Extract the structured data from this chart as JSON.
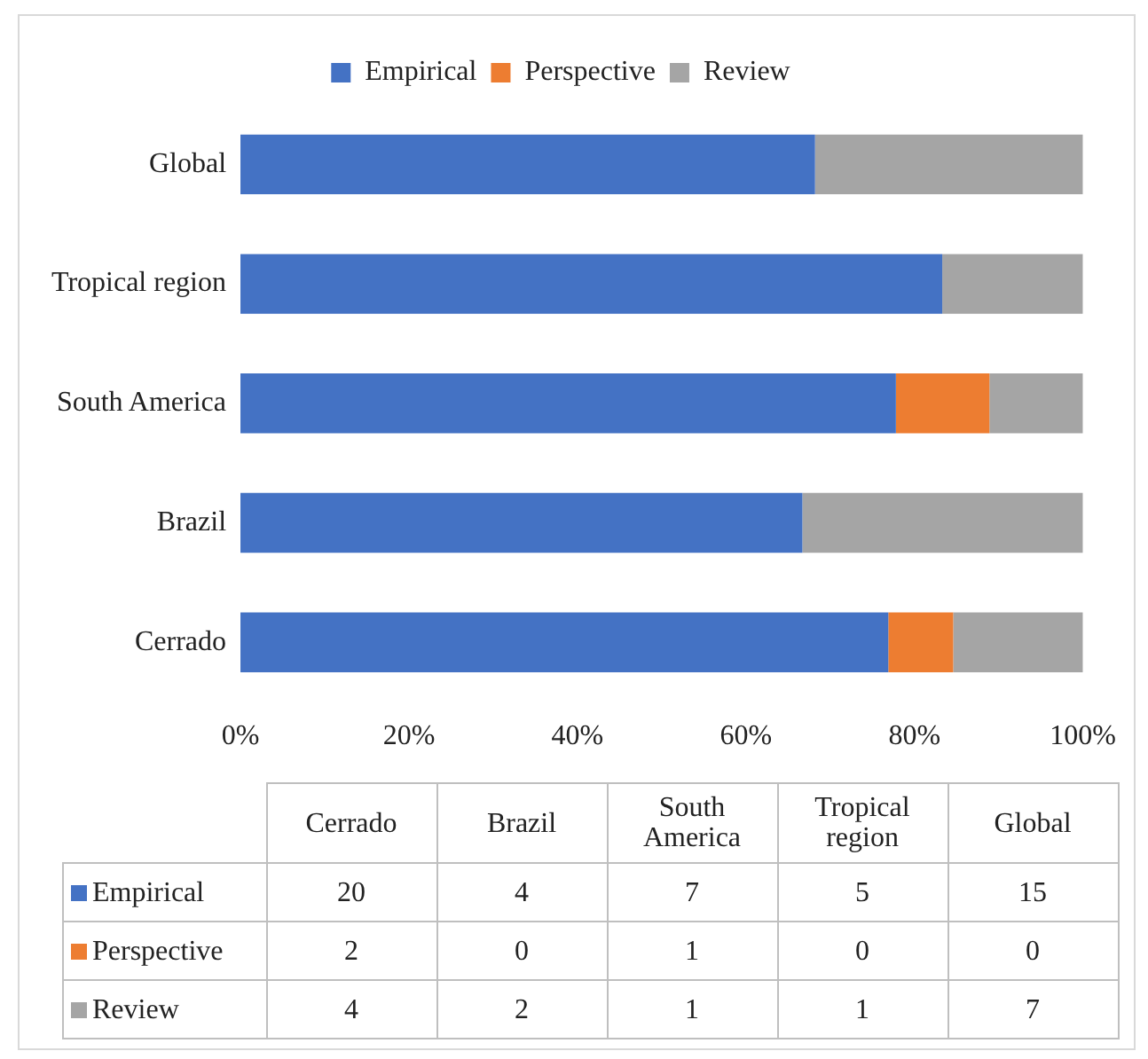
{
  "chart_data": [
    {
      "type": "bar",
      "orientation": "horizontal",
      "stacked": true,
      "categories": [
        "Global",
        "Tropical region",
        "South America",
        "Brazil",
        "Cerrado"
      ],
      "series": [
        {
          "name": "Empirical",
          "color": "#4472c4",
          "values": [
            68.2,
            83.3,
            77.8,
            66.7,
            76.9
          ]
        },
        {
          "name": "Perspective",
          "color": "#ed7d31",
          "values": [
            0,
            0,
            11.1,
            0,
            7.7
          ]
        },
        {
          "name": "Review",
          "color": "#a5a5a5",
          "values": [
            31.8,
            16.7,
            11.1,
            33.3,
            15.4
          ]
        }
      ],
      "xlim": [
        0,
        100
      ],
      "xticks": [
        {
          "value": 0,
          "label": "0%"
        },
        {
          "value": 20,
          "label": "20%"
        },
        {
          "value": 40,
          "label": "40%"
        },
        {
          "value": 60,
          "label": "60%"
        },
        {
          "value": 80,
          "label": "80%"
        },
        {
          "value": 100,
          "label": "100%"
        }
      ],
      "legend": "top"
    },
    {
      "type": "other",
      "data_labels": true,
      "categories": [
        "Cerrado",
        "Brazil",
        "South America",
        "Tropical region",
        "Global"
      ],
      "series": [
        {
          "name": "Empirical",
          "color": "#4472c4",
          "values": [
            20,
            4,
            7,
            5,
            15
          ]
        },
        {
          "name": "Perspective",
          "color": "#ed7d31",
          "values": [
            2,
            0,
            1,
            0,
            0
          ]
        },
        {
          "name": "Review",
          "color": "#a5a5a5",
          "values": [
            4,
            2,
            1,
            1,
            7
          ]
        }
      ]
    }
  ]
}
